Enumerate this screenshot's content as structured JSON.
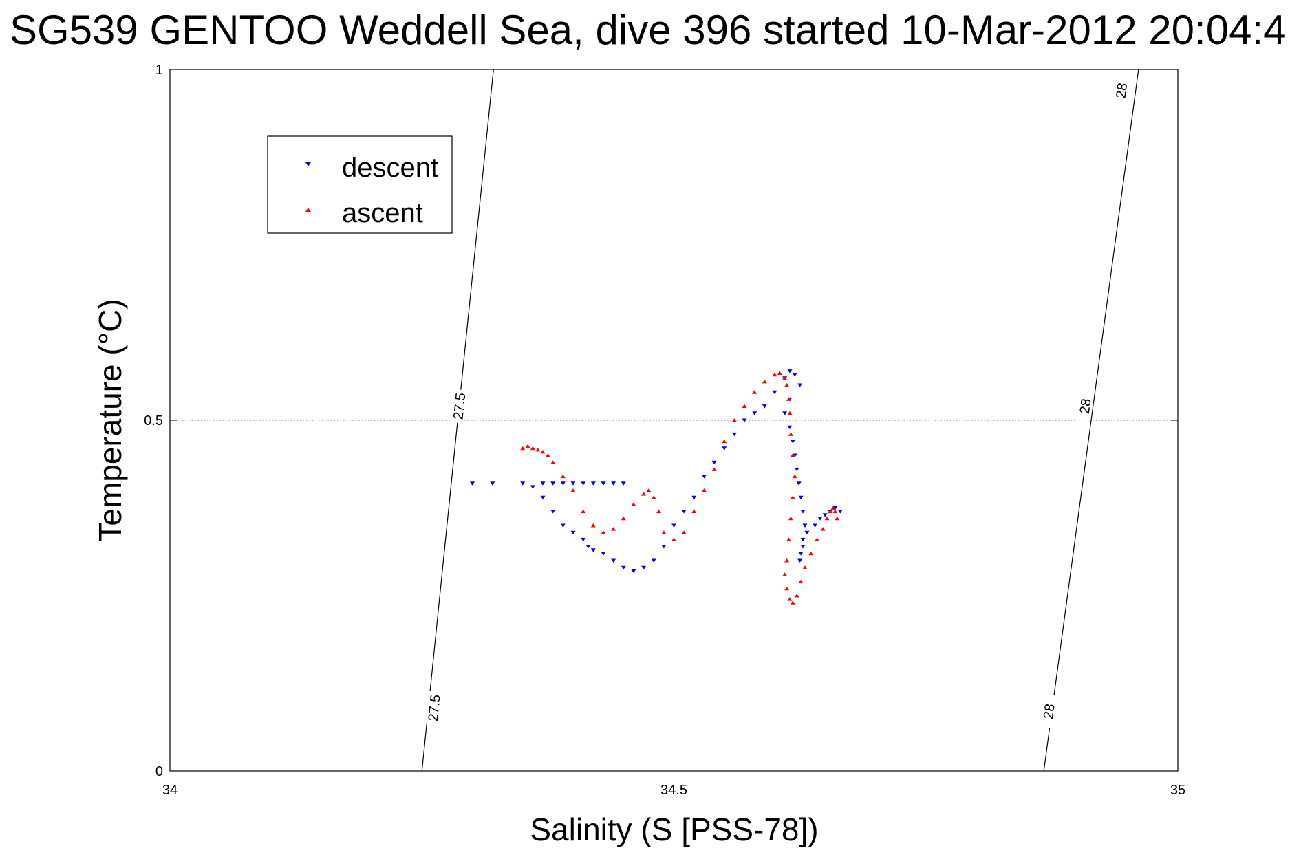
{
  "chart_data": {
    "type": "scatter",
    "title": "SG539 GENTOO Weddell Sea, dive 396 started 10-Mar-2012 20:04:4",
    "xlabel": "Salinity (S [PSS-78])",
    "ylabel": "Temperature (°C)",
    "xlim": [
      34,
      35
    ],
    "ylim": [
      0,
      1
    ],
    "xticks": [
      34,
      34.5,
      35
    ],
    "xtick_labels": [
      "34",
      "34.5",
      "35"
    ],
    "yticks": [
      0,
      0.5,
      1
    ],
    "ytick_labels": [
      "0",
      "0.5",
      "1"
    ],
    "grid": true,
    "legend": {
      "placement": "top-left"
    },
    "density_contours": [
      {
        "level": "27.5",
        "points": [
          [
            34.25,
            0
          ],
          [
            34.321,
            1
          ]
        ],
        "label_positions": [
          [
            34.262,
            0.09
          ],
          [
            34.287,
            0.52
          ]
        ]
      },
      {
        "level": "28",
        "points": [
          [
            34.867,
            0
          ],
          [
            34.961,
            1
          ]
        ],
        "label_positions": [
          [
            34.872,
            0.085
          ],
          [
            34.908,
            0.52
          ],
          [
            34.944,
            0.97
          ]
        ]
      }
    ],
    "series": [
      {
        "name": "descent",
        "color": "#0000ff",
        "marker": "triangle-down",
        "x": [
          34.3,
          34.32,
          34.35,
          34.37,
          34.38,
          34.39,
          34.4,
          34.41,
          34.42,
          34.43,
          34.44,
          34.45,
          34.36,
          34.37,
          34.38,
          34.39,
          34.4,
          34.41,
          34.415,
          34.42,
          34.43,
          34.44,
          34.45,
          34.46,
          34.47,
          34.48,
          34.49,
          34.5,
          34.51,
          34.52,
          34.53,
          34.54,
          34.55,
          34.56,
          34.57,
          34.58,
          34.59,
          34.6,
          34.61,
          34.615,
          34.62,
          34.625,
          34.615,
          34.61,
          34.615,
          34.618,
          34.62,
          34.622,
          34.624,
          34.626,
          34.628,
          34.63,
          34.628,
          34.626,
          34.625,
          34.628,
          34.632,
          34.64,
          34.645,
          34.65,
          34.655,
          34.66,
          34.665
        ],
        "y": [
          0.41,
          0.41,
          0.41,
          0.41,
          0.41,
          0.41,
          0.41,
          0.41,
          0.41,
          0.41,
          0.41,
          0.41,
          0.405,
          0.39,
          0.37,
          0.35,
          0.34,
          0.33,
          0.32,
          0.315,
          0.31,
          0.3,
          0.29,
          0.285,
          0.29,
          0.3,
          0.32,
          0.35,
          0.37,
          0.39,
          0.42,
          0.44,
          0.46,
          0.48,
          0.5,
          0.51,
          0.52,
          0.54,
          0.56,
          0.57,
          0.565,
          0.55,
          0.53,
          0.51,
          0.49,
          0.47,
          0.45,
          0.43,
          0.41,
          0.39,
          0.37,
          0.35,
          0.33,
          0.31,
          0.3,
          0.32,
          0.34,
          0.35,
          0.36,
          0.365,
          0.37,
          0.375,
          0.37
        ]
      },
      {
        "name": "ascent",
        "color": "#ff0000",
        "marker": "triangle-up",
        "x": [
          34.35,
          34.355,
          34.36,
          34.365,
          34.37,
          34.375,
          34.38,
          34.39,
          34.4,
          34.41,
          34.42,
          34.43,
          34.44,
          34.45,
          34.46,
          34.47,
          34.475,
          34.48,
          34.485,
          34.49,
          34.5,
          34.51,
          34.52,
          34.53,
          34.54,
          34.55,
          34.56,
          34.57,
          34.58,
          34.59,
          34.6,
          34.605,
          34.61,
          34.612,
          34.614,
          34.615,
          34.616,
          34.618,
          34.62,
          34.618,
          34.616,
          34.614,
          34.612,
          34.61,
          34.612,
          34.615,
          34.618,
          34.622,
          34.626,
          34.63,
          34.636,
          34.642,
          34.648,
          34.652,
          34.655,
          34.658,
          34.66,
          34.662
        ],
        "y": [
          0.46,
          0.463,
          0.46,
          0.458,
          0.455,
          0.45,
          0.44,
          0.42,
          0.4,
          0.37,
          0.35,
          0.34,
          0.345,
          0.36,
          0.38,
          0.395,
          0.4,
          0.39,
          0.37,
          0.34,
          0.33,
          0.34,
          0.37,
          0.4,
          0.43,
          0.47,
          0.5,
          0.52,
          0.54,
          0.555,
          0.565,
          0.567,
          0.56,
          0.55,
          0.53,
          0.51,
          0.48,
          0.45,
          0.42,
          0.39,
          0.36,
          0.33,
          0.3,
          0.28,
          0.26,
          0.245,
          0.24,
          0.25,
          0.27,
          0.29,
          0.31,
          0.33,
          0.345,
          0.36,
          0.37,
          0.375,
          0.37,
          0.36
        ]
      }
    ]
  }
}
